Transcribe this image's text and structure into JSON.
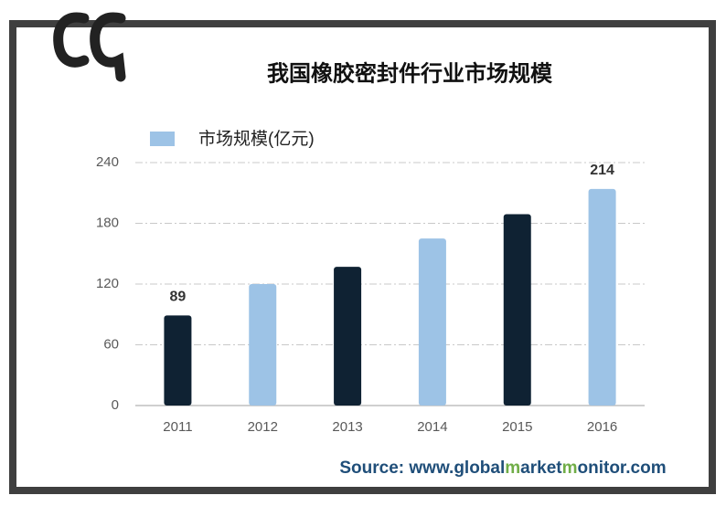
{
  "chart_data": {
    "type": "bar",
    "title": "我国橡胶密封件行业市场规模",
    "categories": [
      "2011",
      "2012",
      "2013",
      "2014",
      "2015",
      "2016"
    ],
    "series": [
      {
        "name": "市场规模(亿元)",
        "color": "#9dc3e6",
        "values": [
          89,
          120,
          137,
          165,
          189,
          214
        ],
        "bar_colors": [
          "#0f2233",
          "#9dc3e6",
          "#0f2233",
          "#9dc3e6",
          "#0f2233",
          "#9dc3e6"
        ],
        "value_labels": [
          "89",
          null,
          null,
          null,
          null,
          "214"
        ]
      }
    ],
    "ylim": [
      0,
      240
    ],
    "yticks": [
      0,
      60,
      120,
      180,
      240
    ],
    "grid": true,
    "source": [
      {
        "text": "Source: www.",
        "color": "#1f4e79"
      },
      {
        "text": "global",
        "color": "#1f4e79"
      },
      {
        "text": "m",
        "color": "#70ad47"
      },
      {
        "text": "arket",
        "color": "#1f4e79"
      },
      {
        "text": "m",
        "color": "#70ad47"
      },
      {
        "text": "onitor.com",
        "color": "#1f4e79"
      }
    ]
  }
}
